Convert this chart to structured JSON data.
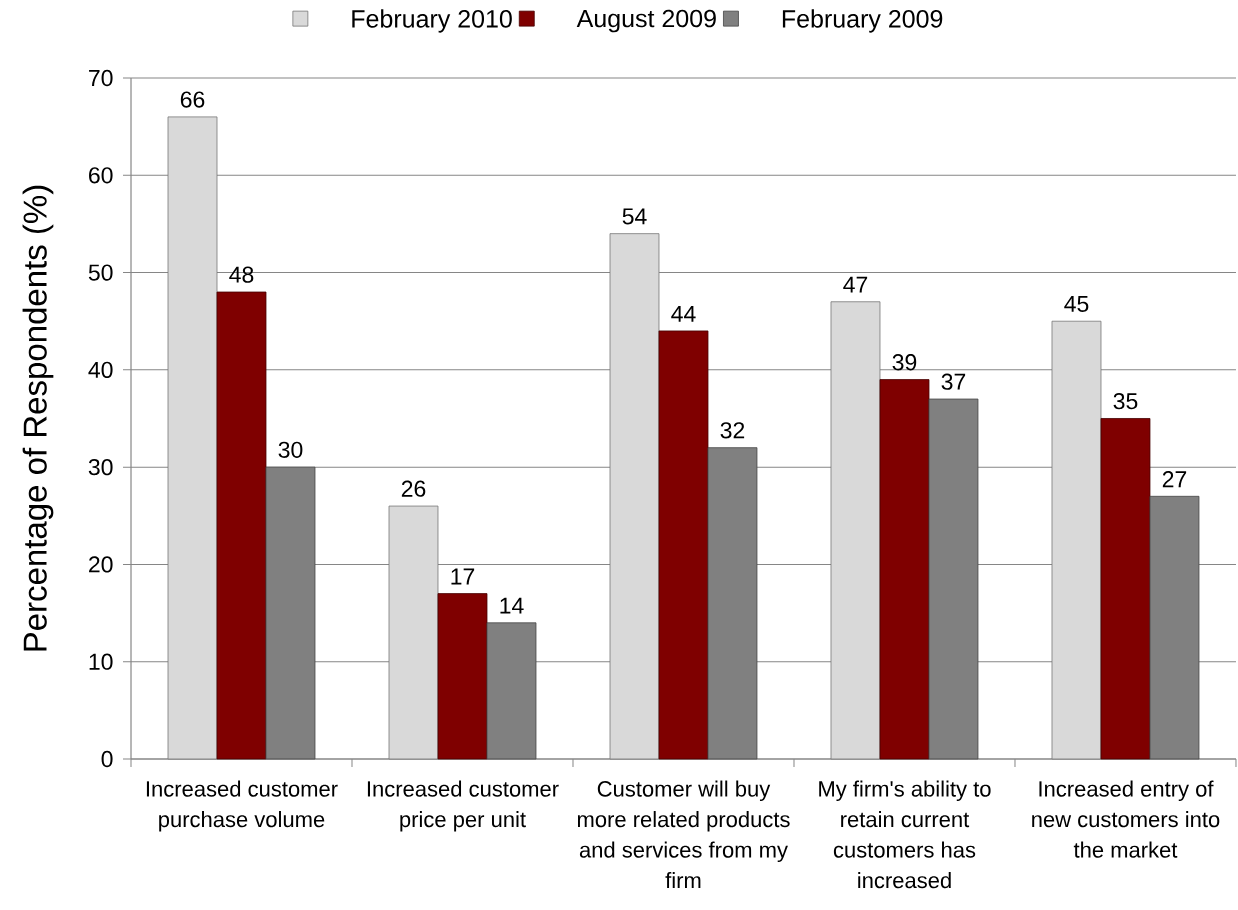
{
  "chart_data": {
    "type": "bar",
    "ylabel": "Percentage of Respondents (%)",
    "categories": [
      "Increased customer purchase volume",
      "Increased customer price per unit",
      "Customer will buy more related products and services from my firm",
      "My firm's ability to retain current customers has increased",
      "Increased entry of new customers into the market"
    ],
    "series": [
      {
        "name": "February 2010",
        "color": "#d9d9d9",
        "values": [
          66,
          26,
          54,
          47,
          45
        ]
      },
      {
        "name": "August 2009",
        "color": "#7f0000",
        "values": [
          48,
          17,
          44,
          39,
          35
        ]
      },
      {
        "name": "February 2009",
        "color": "#808080",
        "values": [
          30,
          14,
          32,
          37,
          27
        ]
      }
    ],
    "ylim": [
      0,
      70
    ],
    "yticks": [
      0,
      10,
      20,
      30,
      40,
      50,
      60,
      70
    ],
    "grid": "y",
    "legend": "top",
    "data_labels": true
  }
}
